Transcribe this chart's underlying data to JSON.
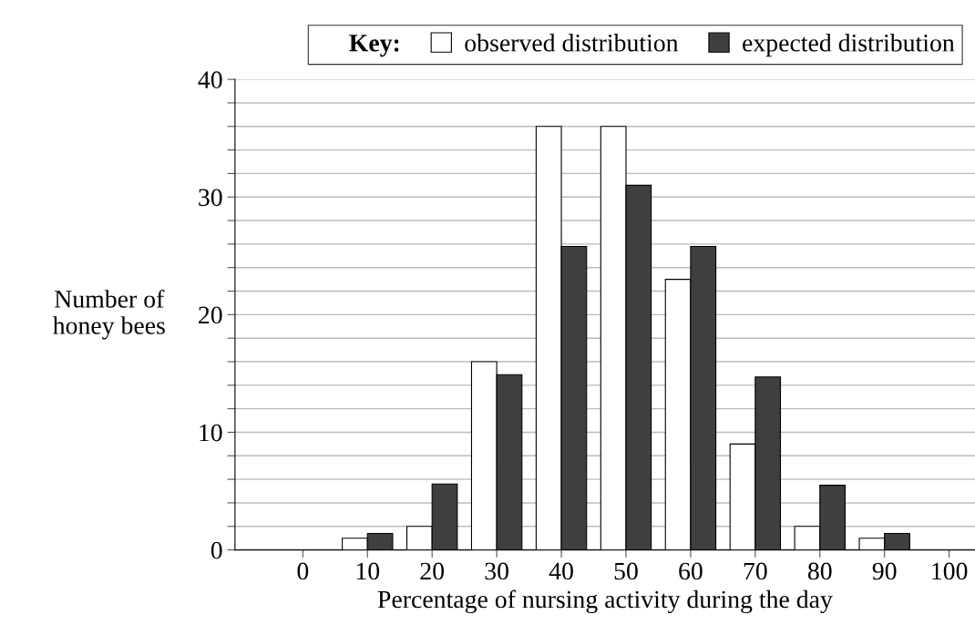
{
  "chart_data": {
    "type": "bar",
    "xlabel": "Percentage of nursing activity during the day",
    "ylabel": "Number of\nhoney bees",
    "legend_title": "Key:",
    "x": [
      10,
      20,
      30,
      40,
      50,
      60,
      70,
      80,
      90
    ],
    "series": [
      {
        "name": "observed distribution",
        "color": "#ffffff",
        "values": [
          1,
          2,
          16,
          36,
          36,
          23,
          9,
          2,
          1
        ]
      },
      {
        "name": "expected distribution",
        "color": "#3f3f3f",
        "values": [
          1.4,
          5.6,
          14.9,
          25.8,
          31.0,
          25.8,
          14.7,
          5.5,
          1.4
        ]
      }
    ],
    "xlim": [
      -10.5,
      104
    ],
    "xticks": [
      0,
      10,
      20,
      30,
      40,
      50,
      60,
      70,
      80,
      90,
      100
    ],
    "ylim": [
      0,
      40
    ],
    "yticks": [
      0,
      {
        "value": 2,
        "label": null
      },
      {
        "value": 4,
        "label": null
      },
      {
        "value": 6,
        "label": null
      },
      {
        "value": 8,
        "label": null
      },
      10,
      {
        "value": 12,
        "label": null
      },
      {
        "value": 14,
        "label": null
      },
      {
        "value": 16,
        "label": null
      },
      {
        "value": 18,
        "label": null
      },
      20,
      {
        "value": 22,
        "label": null
      },
      {
        "value": 24,
        "label": null
      },
      {
        "value": 26,
        "label": null
      },
      {
        "value": 28,
        "label": null
      },
      30,
      {
        "value": 32,
        "label": null
      },
      {
        "value": 34,
        "label": null
      },
      {
        "value": 36,
        "label": null
      },
      {
        "value": 38,
        "label": null
      },
      40
    ],
    "grid": "y",
    "legend": "top right"
  }
}
